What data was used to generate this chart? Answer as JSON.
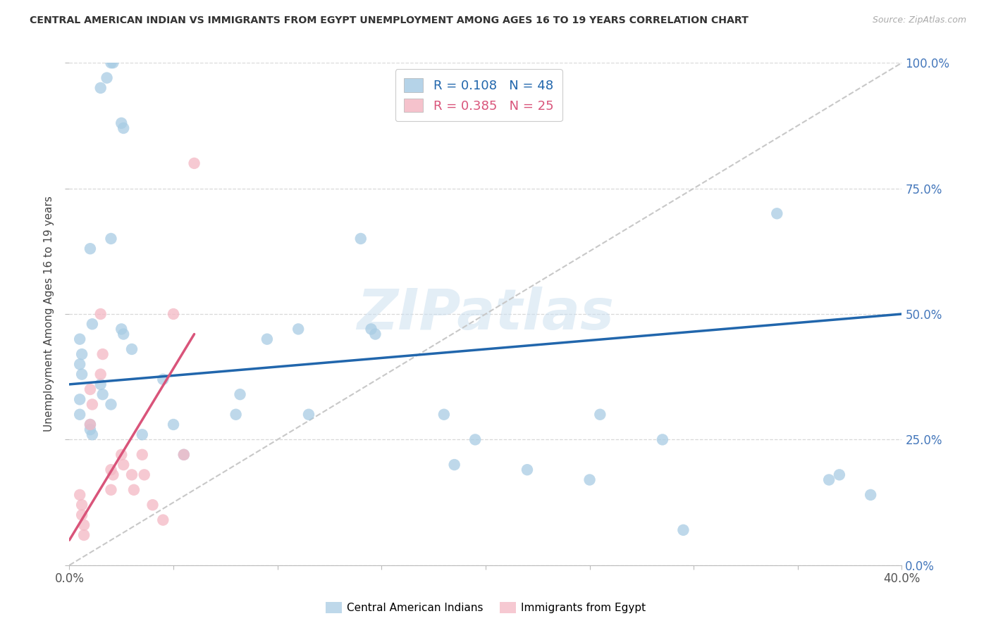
{
  "title": "CENTRAL AMERICAN INDIAN VS IMMIGRANTS FROM EGYPT UNEMPLOYMENT AMONG AGES 16 TO 19 YEARS CORRELATION CHART",
  "source": "Source: ZipAtlas.com",
  "ylabel": "Unemployment Among Ages 16 to 19 years",
  "xlabel_label_blue": "Central American Indians",
  "xlabel_label_pink": "Immigrants from Egypt",
  "legend_r_blue": "R = 0.108",
  "legend_n_blue": "N = 48",
  "legend_r_pink": "R = 0.385",
  "legend_n_pink": "N = 25",
  "blue_color": "#a8cce4",
  "pink_color": "#f4b8c4",
  "blue_line_color": "#2166ac",
  "pink_line_color": "#d9547a",
  "watermark": "ZIPatlas",
  "blue_x": [
    1.5,
    1.8,
    2.0,
    2.1,
    2.5,
    2.6,
    2.0,
    1.0,
    1.1,
    0.5,
    0.6,
    0.5,
    0.6,
    0.5,
    0.5,
    1.0,
    1.0,
    1.1,
    1.5,
    1.6,
    2.0,
    2.5,
    2.6,
    3.0,
    3.5,
    4.5,
    5.0,
    5.5,
    8.0,
    8.2,
    9.5,
    11.0,
    11.5,
    14.0,
    14.5,
    14.7,
    18.0,
    18.5,
    19.5,
    22.0,
    25.0,
    25.5,
    28.5,
    29.5,
    34.0,
    36.5,
    37.0,
    38.5
  ],
  "blue_y": [
    95,
    97,
    100,
    100,
    88,
    87,
    65,
    63,
    48,
    45,
    42,
    40,
    38,
    33,
    30,
    28,
    27,
    26,
    36,
    34,
    32,
    47,
    46,
    43,
    26,
    37,
    28,
    22,
    30,
    34,
    45,
    47,
    30,
    65,
    47,
    46,
    30,
    20,
    25,
    19,
    17,
    30,
    25,
    7,
    70,
    17,
    18,
    14
  ],
  "pink_x": [
    0.5,
    0.6,
    0.6,
    0.7,
    0.7,
    1.0,
    1.1,
    1.0,
    1.5,
    1.6,
    1.5,
    2.0,
    2.1,
    2.0,
    2.5,
    2.6,
    3.0,
    3.1,
    3.5,
    3.6,
    4.0,
    4.5,
    5.0,
    5.5,
    6.0
  ],
  "pink_y": [
    14,
    12,
    10,
    8,
    6,
    35,
    32,
    28,
    50,
    42,
    38,
    19,
    18,
    15,
    22,
    20,
    18,
    15,
    22,
    18,
    12,
    9,
    50,
    22,
    80
  ],
  "xlim": [
    0,
    40
  ],
  "ylim": [
    0,
    100
  ],
  "ytick_vals": [
    0,
    25,
    50,
    75,
    100
  ],
  "xtick_vals": [
    0,
    5,
    10,
    15,
    20,
    25,
    30,
    35,
    40
  ],
  "blue_reg_x0": 0,
  "blue_reg_y0": 36,
  "blue_reg_x1": 40,
  "blue_reg_y1": 50,
  "pink_reg_x0": 0,
  "pink_reg_y0": 5,
  "pink_reg_x1": 6,
  "pink_reg_y1": 46
}
